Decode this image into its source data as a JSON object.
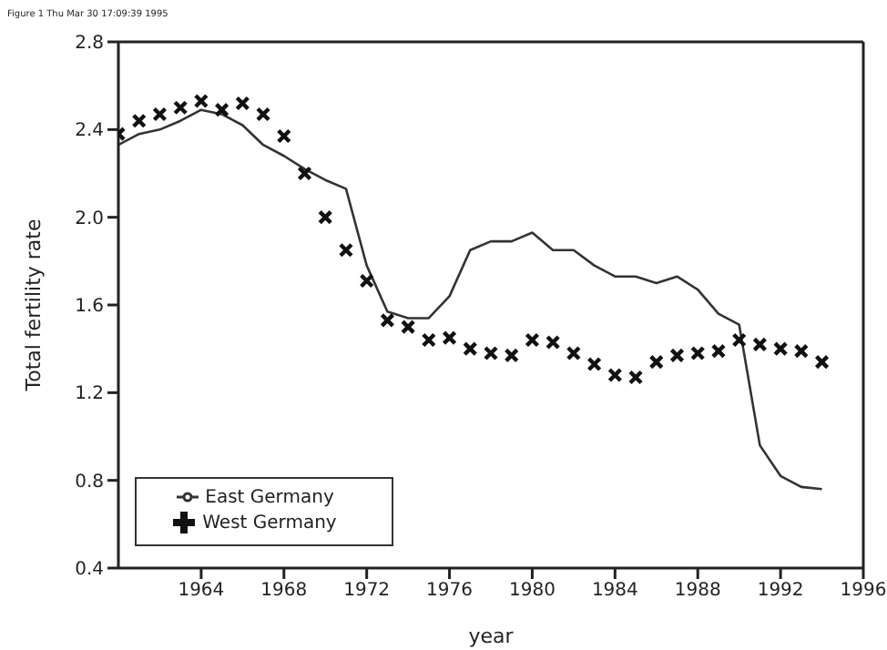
{
  "chart_data": {
    "type": "line",
    "xlabel": "year",
    "ylabel": "Total fertility rate",
    "annotations": [
      "Figure 1 Thu Mar 30 17:09:39 1995"
    ],
    "x": [
      1960,
      1961,
      1962,
      1963,
      1964,
      1965,
      1966,
      1967,
      1968,
      1969,
      1970,
      1971,
      1972,
      1973,
      1974,
      1975,
      1976,
      1977,
      1978,
      1979,
      1980,
      1981,
      1982,
      1983,
      1984,
      1985,
      1986,
      1987,
      1988,
      1989,
      1990,
      1991,
      1992,
      1993,
      1994
    ],
    "series": [
      {
        "name": "East Germany",
        "type": "line",
        "color": "#333333",
        "marker": "none",
        "values": [
          2.33,
          2.38,
          2.4,
          2.44,
          2.49,
          2.47,
          2.42,
          2.33,
          2.28,
          2.22,
          2.17,
          2.13,
          1.78,
          1.57,
          1.54,
          1.54,
          1.64,
          1.85,
          1.89,
          1.89,
          1.93,
          1.85,
          1.85,
          1.78,
          1.73,
          1.73,
          1.7,
          1.73,
          1.67,
          1.56,
          1.51,
          0.96,
          0.82,
          0.77,
          0.76
        ]
      },
      {
        "name": "West Germany",
        "type": "scatter",
        "color": "#111111",
        "marker": "cross",
        "values": [
          2.38,
          2.44,
          2.47,
          2.5,
          2.53,
          2.49,
          2.52,
          2.47,
          2.37,
          2.2,
          2.0,
          1.85,
          1.71,
          1.53,
          1.5,
          1.44,
          1.45,
          1.4,
          1.38,
          1.37,
          1.44,
          1.43,
          1.38,
          1.33,
          1.28,
          1.27,
          1.34,
          1.37,
          1.38,
          1.39,
          1.44,
          1.42,
          1.4,
          1.39,
          1.34
        ]
      }
    ],
    "xlim": [
      1960,
      1996
    ],
    "xticks": [
      1964,
      1968,
      1972,
      1976,
      1980,
      1984,
      1988,
      1992,
      1996
    ],
    "ylim": [
      0.4,
      2.8
    ],
    "yticks": [
      0.4,
      0.8,
      1.2,
      1.6,
      {
        "value": 2,
        "label": "2.0"
      },
      2.4,
      2.8
    ],
    "grid": false,
    "legend": "bottom left"
  }
}
